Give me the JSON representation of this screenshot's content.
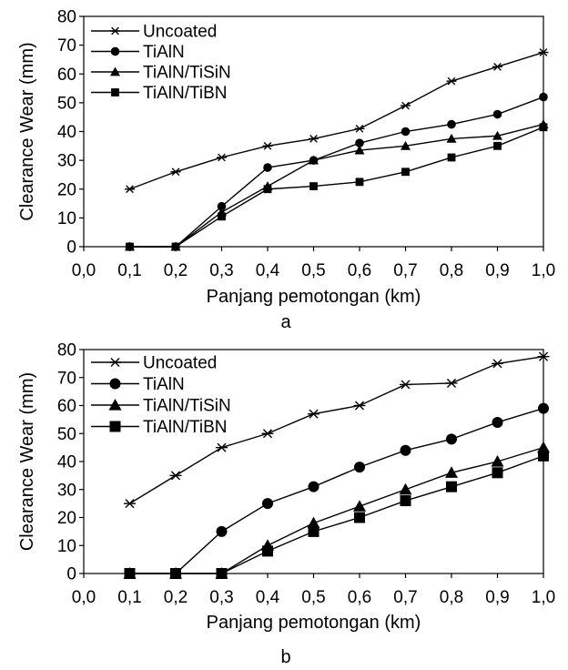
{
  "chart_data": [
    {
      "type": "line",
      "caption": "a",
      "xlabel": "Panjang pemotongan (km)",
      "ylabel": "Clearance Wear (mm)",
      "xlim": [
        0,
        1.0
      ],
      "ylim": [
        0,
        80
      ],
      "x_ticks": [
        "0,0",
        "0,1",
        "0,2",
        "0,3",
        "0,4",
        "0,5",
        "0,6",
        "0,7",
        "0,8",
        "0,9",
        "1,0"
      ],
      "y_ticks": [
        "0",
        "10",
        "20",
        "30",
        "40",
        "50",
        "60",
        "70",
        "80"
      ],
      "legend_position": "top-left",
      "x": [
        0.1,
        0.2,
        0.3,
        0.4,
        0.5,
        0.6,
        0.7,
        0.8,
        0.9,
        1.0
      ],
      "series": [
        {
          "name": "Uncoated",
          "marker": "star",
          "values": [
            20,
            26,
            31,
            35,
            37.5,
            41,
            49,
            57.5,
            62.5,
            67.5
          ]
        },
        {
          "name": "TiAlN",
          "marker": "circle",
          "values": [
            0,
            0,
            14,
            27.5,
            30,
            36,
            40,
            42.5,
            46,
            52
          ]
        },
        {
          "name": "TiAlN/TiSiN",
          "marker": "triangle",
          "values": [
            0,
            0,
            12,
            21,
            30,
            33.5,
            35,
            37.5,
            38.5,
            42.5
          ]
        },
        {
          "name": "TiAlN/TiBN",
          "marker": "square",
          "values": [
            0,
            0,
            10.5,
            20,
            21,
            22.5,
            26,
            31,
            35,
            41.5
          ]
        }
      ]
    },
    {
      "type": "line",
      "caption": "b",
      "xlabel": "Panjang pemotongan (km)",
      "ylabel": "Clearance Wear (mm)",
      "xlim": [
        0,
        1.0
      ],
      "ylim": [
        0,
        80
      ],
      "x_ticks": [
        "0,0",
        "0,1",
        "0,2",
        "0,3",
        "0,4",
        "0,5",
        "0,6",
        "0,7",
        "0,8",
        "0,9",
        "1,0"
      ],
      "y_ticks": [
        "0",
        "10",
        "20",
        "30",
        "40",
        "50",
        "60",
        "70",
        "80"
      ],
      "legend_position": "top-left",
      "x": [
        0.1,
        0.2,
        0.3,
        0.4,
        0.5,
        0.6,
        0.7,
        0.8,
        0.9,
        1.0
      ],
      "series": [
        {
          "name": "Uncoated",
          "marker": "star",
          "values": [
            25,
            35,
            45,
            50,
            57,
            60,
            67.5,
            68,
            75,
            77.5
          ]
        },
        {
          "name": "TiAlN",
          "marker": "circle",
          "values": [
            0,
            0,
            15,
            25,
            31,
            38,
            44,
            48,
            54,
            59
          ]
        },
        {
          "name": "TiAlN/TiSiN",
          "marker": "triangle",
          "values": [
            0,
            0,
            0,
            10,
            18,
            24,
            30,
            36,
            40,
            45
          ]
        },
        {
          "name": "TiAlN/TiBN",
          "marker": "square",
          "values": [
            0,
            0,
            0,
            8,
            15,
            20,
            26,
            31,
            36,
            42
          ]
        }
      ]
    }
  ]
}
